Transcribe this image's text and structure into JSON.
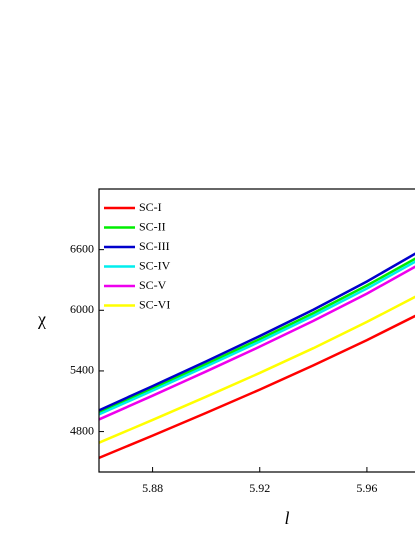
{
  "chart_data": {
    "type": "line",
    "x_label": "l",
    "y_label": "χ",
    "x": [
      5.86,
      5.88,
      5.9,
      5.92,
      5.94,
      5.96,
      5.98
    ],
    "series": [
      {
        "name": "SC-I",
        "color": "#ff0000",
        "values": [
          4540,
          4760,
          4985,
          5215,
          5455,
          5705,
          5970
        ]
      },
      {
        "name": "SC-II",
        "color": "#00ee00",
        "values": [
          4990,
          5227,
          5468,
          5715,
          5972,
          6245,
          6540
        ]
      },
      {
        "name": "SC-III",
        "color": "#0000cc",
        "values": [
          5010,
          5250,
          5495,
          5745,
          6005,
          6285,
          6590
        ]
      },
      {
        "name": "SC-IV",
        "color": "#00eeee",
        "values": [
          4970,
          5205,
          5445,
          5690,
          5945,
          6215,
          6510
        ]
      },
      {
        "name": "SC-V",
        "color": "#ee00ee",
        "values": [
          4920,
          5155,
          5395,
          5640,
          5895,
          6165,
          6460
        ]
      },
      {
        "name": "SC-VI",
        "color": "#ffff00",
        "values": [
          4690,
          4915,
          5145,
          5380,
          5625,
          5885,
          6160
        ]
      }
    ],
    "xlim": [
      5.86,
      5.98
    ],
    "ylim": [
      4400,
      7200
    ],
    "xticks": [
      5.88,
      5.92,
      5.96
    ],
    "yticks": [
      4800,
      5400,
      6000,
      6600
    ],
    "legend": "upper left",
    "grid": false
  }
}
